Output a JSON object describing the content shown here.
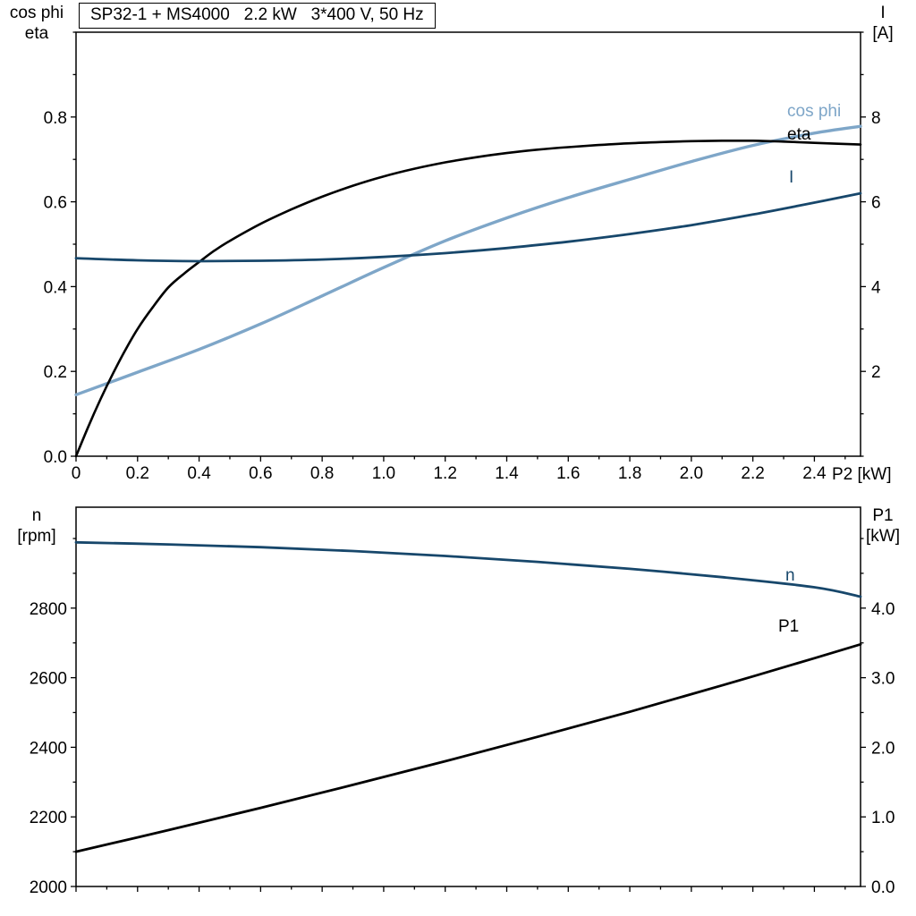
{
  "colors": {
    "black": "#000000",
    "dark_blue": "#17476b",
    "light_blue": "#7ea6c8",
    "axis": "#000000",
    "background": "#ffffff"
  },
  "chart_data": [
    {
      "type": "line",
      "id": "top",
      "title": "SP32-1 + MS4000   2.2 kW   3*400 V, 50 Hz",
      "xlabel": "P2 [kW]",
      "x_range": [
        0,
        2.55
      ],
      "x_major_ticks": [
        0,
        0.2,
        0.4,
        0.6,
        0.8,
        1.0,
        1.2,
        1.4,
        1.6,
        1.8,
        2.0,
        2.2,
        2.4
      ],
      "x_tick_labels": [
        "0",
        "0.2",
        "0.4",
        "0.6",
        "0.8",
        "1.0",
        "1.2",
        "1.4",
        "1.6",
        "1.8",
        "2.0",
        "2.2",
        "2.4"
      ],
      "x_minor_step": 0.1,
      "grid": false,
      "left_axis": {
        "title_lines": [
          "cos phi",
          "eta"
        ],
        "range": [
          0,
          1.0
        ],
        "major_ticks": [
          0,
          0.2,
          0.4,
          0.6,
          0.8
        ],
        "tick_labels": [
          "0.0",
          "0.2",
          "0.4",
          "0.6",
          "0.8"
        ],
        "minor_step": 0.1
      },
      "right_axis": {
        "title_lines": [
          "I",
          "[A]"
        ],
        "range": [
          0,
          10
        ],
        "major_ticks": [
          2,
          4,
          6,
          8
        ],
        "tick_labels": [
          "2",
          "4",
          "6",
          "8"
        ],
        "minor_step": 1
      },
      "series": [
        {
          "name": "cos phi",
          "label": "cos phi",
          "axis": "left",
          "color": "light_blue",
          "x": [
            0,
            0.2,
            0.4,
            0.6,
            0.8,
            1.0,
            1.2,
            1.4,
            1.6,
            1.8,
            2.0,
            2.2,
            2.4,
            2.55
          ],
          "y": [
            0.145,
            0.198,
            0.252,
            0.312,
            0.378,
            0.445,
            0.508,
            0.562,
            0.61,
            0.653,
            0.695,
            0.733,
            0.762,
            0.778
          ]
        },
        {
          "name": "eta",
          "label": "eta",
          "axis": "left",
          "color": "black",
          "x": [
            0,
            0.04,
            0.08,
            0.12,
            0.16,
            0.2,
            0.25,
            0.3,
            0.35,
            0.4,
            0.45,
            0.5,
            0.6,
            0.7,
            0.8,
            0.9,
            1.0,
            1.1,
            1.2,
            1.3,
            1.4,
            1.5,
            1.6,
            1.7,
            1.8,
            1.9,
            2.0,
            2.1,
            2.2,
            2.3,
            2.4,
            2.55
          ],
          "y": [
            0,
            0.07,
            0.135,
            0.195,
            0.25,
            0.3,
            0.352,
            0.398,
            0.43,
            0.458,
            0.485,
            0.508,
            0.548,
            0.582,
            0.612,
            0.638,
            0.66,
            0.678,
            0.693,
            0.705,
            0.715,
            0.723,
            0.729,
            0.734,
            0.738,
            0.741,
            0.743,
            0.744,
            0.744,
            0.742,
            0.739,
            0.735
          ]
        },
        {
          "name": "I",
          "label": "I",
          "axis": "right",
          "color": "dark_blue",
          "x": [
            0,
            0.2,
            0.4,
            0.6,
            0.8,
            1.0,
            1.2,
            1.4,
            1.6,
            1.8,
            2.0,
            2.2,
            2.4,
            2.55
          ],
          "y": [
            4.67,
            4.62,
            4.6,
            4.61,
            4.64,
            4.7,
            4.79,
            4.91,
            5.06,
            5.24,
            5.45,
            5.7,
            5.98,
            6.2
          ]
        }
      ]
    },
    {
      "type": "line",
      "id": "bottom",
      "title": "",
      "xlabel": "",
      "x_range": [
        0,
        2.55
      ],
      "x_major_ticks": [
        0,
        0.2,
        0.4,
        0.6,
        0.8,
        1.0,
        1.2,
        1.4,
        1.6,
        1.8,
        2.0,
        2.2,
        2.4
      ],
      "x_tick_labels": [],
      "x_minor_step": 0.1,
      "grid": false,
      "left_axis": {
        "title_lines": [
          "n",
          "[rpm]"
        ],
        "range": [
          2000,
          3090
        ],
        "major_ticks": [
          2000,
          2200,
          2400,
          2600,
          2800
        ],
        "tick_labels": [
          "2000",
          "2200",
          "2400",
          "2600",
          "2800"
        ],
        "minor_step": 100
      },
      "right_axis": {
        "title_lines": [
          "P1",
          "[kW]"
        ],
        "range": [
          0,
          5.45
        ],
        "major_ticks": [
          0,
          1,
          2,
          3,
          4
        ],
        "tick_labels": [
          "0.0",
          "1.0",
          "2.0",
          "3.0",
          "4.0"
        ],
        "minor_step": 0.5
      },
      "series": [
        {
          "name": "n",
          "label": "n",
          "axis": "left",
          "color": "dark_blue",
          "x": [
            0,
            0.3,
            0.6,
            0.9,
            1.2,
            1.5,
            1.8,
            2.1,
            2.4,
            2.55
          ],
          "y": [
            2989,
            2983,
            2975,
            2964,
            2950,
            2933,
            2913,
            2889,
            2860,
            2833
          ]
        },
        {
          "name": "P1",
          "label": "P1",
          "axis": "right",
          "color": "black",
          "x": [
            0,
            0.3,
            0.6,
            0.9,
            1.2,
            1.5,
            1.8,
            2.1,
            2.4,
            2.55
          ],
          "y": [
            0.5,
            0.81,
            1.13,
            1.46,
            1.8,
            2.15,
            2.51,
            2.89,
            3.28,
            3.48
          ]
        }
      ]
    }
  ]
}
